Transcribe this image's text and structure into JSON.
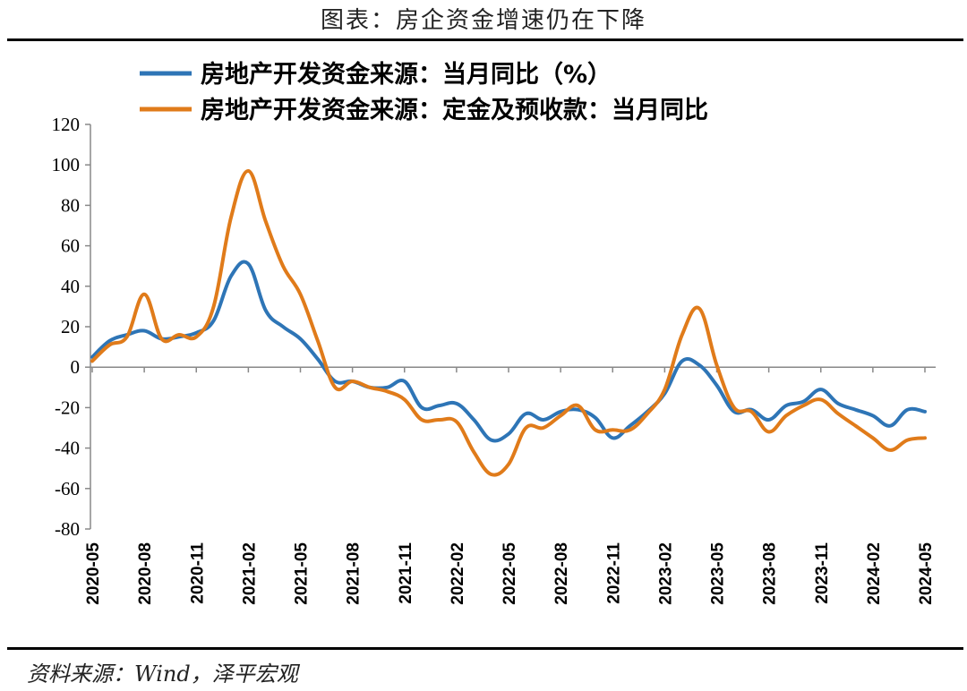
{
  "page": {
    "title": "图表：房企资金增速仍在下降",
    "source": "资料来源：Wind，泽平宏观"
  },
  "chart_data": {
    "type": "line",
    "title": "",
    "xlabel": "",
    "ylabel": "",
    "ylim": [
      -80,
      120
    ],
    "yticks": [
      120,
      100,
      80,
      60,
      40,
      20,
      0,
      -20,
      -40,
      -60,
      -80
    ],
    "legend_position": "top",
    "grid": false,
    "x": [
      "2020-05",
      "2020-06",
      "2020-07",
      "2020-08",
      "2020-09",
      "2020-10",
      "2020-11",
      "2020-12",
      "2021-01",
      "2021-02",
      "2021-03",
      "2021-04",
      "2021-05",
      "2021-06",
      "2021-07",
      "2021-08",
      "2021-09",
      "2021-10",
      "2021-11",
      "2021-12",
      "2022-01",
      "2022-02",
      "2022-03",
      "2022-04",
      "2022-05",
      "2022-06",
      "2022-07",
      "2022-08",
      "2022-09",
      "2022-10",
      "2022-11",
      "2022-12",
      "2023-01",
      "2023-02",
      "2023-03",
      "2023-04",
      "2023-05",
      "2023-06",
      "2023-07",
      "2023-08",
      "2023-09",
      "2023-10",
      "2023-11",
      "2023-12",
      "2024-01",
      "2024-02",
      "2024-03",
      "2024-04",
      "2024-05"
    ],
    "xtick_labels": [
      "2020-05",
      "2020-08",
      "2020-11",
      "2021-02",
      "2021-05",
      "2021-08",
      "2021-11",
      "2022-02",
      "2022-05",
      "2022-08",
      "2022-11",
      "2023-02",
      "2023-05",
      "2023-08",
      "2023-11",
      "2024-02",
      "2024-05"
    ],
    "series": [
      {
        "name": "房地产开发资金来源：当月同比（%）",
        "color": "#2E75B6",
        "values": [
          5,
          13,
          16,
          18,
          14,
          15,
          17,
          23,
          45,
          51,
          28,
          20,
          14,
          4,
          -7,
          -7,
          -10,
          -10,
          -7,
          -20,
          -19,
          -18,
          -26,
          -36,
          -33,
          -23,
          -26,
          -22,
          -21,
          -25,
          -35,
          -29,
          -22,
          -13,
          3,
          1,
          -9,
          -22,
          -21,
          -26,
          -19,
          -17,
          -11,
          -18,
          -21,
          -24,
          -29,
          -21,
          -22
        ]
      },
      {
        "name": "房地产开发资金来源：定金及预收款：当月同比",
        "color": "#E07B1A",
        "values": [
          3,
          11,
          15,
          36,
          14,
          16,
          15,
          30,
          74,
          97,
          72,
          50,
          36,
          13,
          -10,
          -7,
          -10,
          -12,
          -16,
          -26,
          -26,
          -27,
          -42,
          -53,
          -48,
          -30,
          -30,
          -24,
          -19,
          -31,
          -31,
          -31,
          -23,
          -11,
          16,
          29,
          1,
          -20,
          -22,
          -32,
          -24,
          -19,
          -16,
          -23,
          -29,
          -35,
          -41,
          -36,
          -35
        ]
      }
    ]
  }
}
